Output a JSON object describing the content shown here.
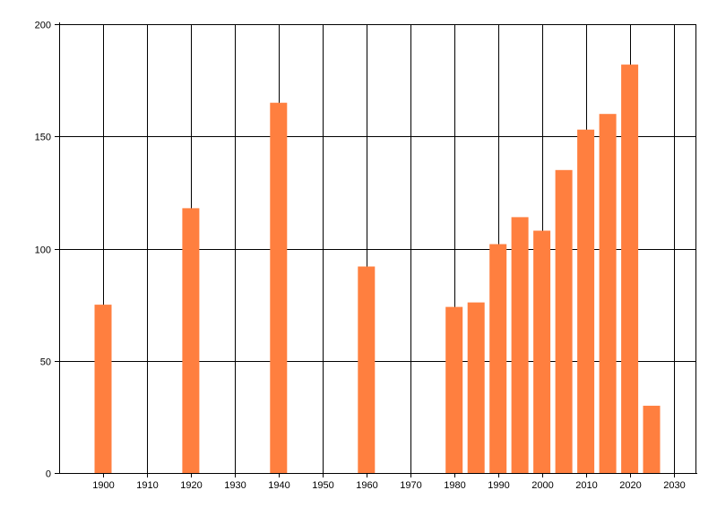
{
  "chart_data": {
    "type": "bar",
    "x": [
      1900,
      1920,
      1940,
      1960,
      1980,
      1985,
      1990,
      1995,
      2000,
      2005,
      2010,
      2015,
      2020,
      2025
    ],
    "values": [
      75,
      118,
      165,
      92,
      74,
      76,
      102,
      114,
      108,
      135,
      153,
      160,
      182,
      30
    ],
    "xlim": [
      1890,
      2035
    ],
    "ylim": [
      0,
      200
    ],
    "xticks": [
      1900,
      1910,
      1920,
      1930,
      1940,
      1950,
      1960,
      1970,
      1980,
      1990,
      2000,
      2010,
      2020,
      2030
    ],
    "yticks": [
      0,
      50,
      100,
      150,
      200
    ],
    "title": "",
    "xlabel": "",
    "ylabel": "",
    "grid": true,
    "bar_color": "#ff7f3f",
    "axis_color": "#000000",
    "grid_color": "#000000"
  }
}
